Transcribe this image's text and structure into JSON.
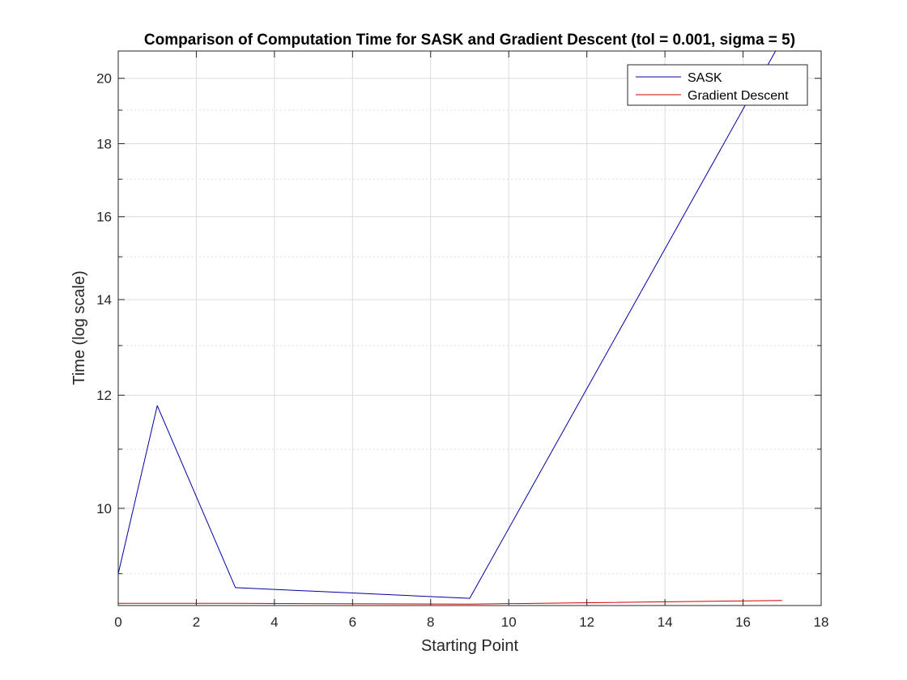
{
  "chart_data": {
    "type": "line",
    "title": "Comparison of Computation Time for SASK and Gradient Descent (tol = 0.001, sigma = 5)",
    "xlabel": "Starting Point",
    "ylabel": "Time (log scale)",
    "xlim": [
      0,
      18
    ],
    "ylim": [
      8.55,
      20.9
    ],
    "y_scale": "log",
    "grid": true,
    "minor_grid": true,
    "legend_position": "top-right",
    "x_ticks": [
      0,
      2,
      4,
      6,
      8,
      10,
      12,
      14,
      16,
      18
    ],
    "y_ticks": [
      10,
      12,
      14,
      16,
      18,
      20
    ],
    "y_minor_ticks": [
      9,
      11,
      13,
      15,
      17,
      19
    ],
    "series": [
      {
        "name": "SASK",
        "color": "#0000a0",
        "x": [
          0,
          1,
          3,
          9,
          17
        ],
        "y": [
          9.0,
          11.8,
          8.8,
          8.65,
          21.3
        ]
      },
      {
        "name": "Gradient Descent",
        "color": "#d00000",
        "x": [
          0,
          3,
          9,
          17
        ],
        "y": [
          8.58,
          8.58,
          8.57,
          8.62
        ]
      }
    ]
  }
}
